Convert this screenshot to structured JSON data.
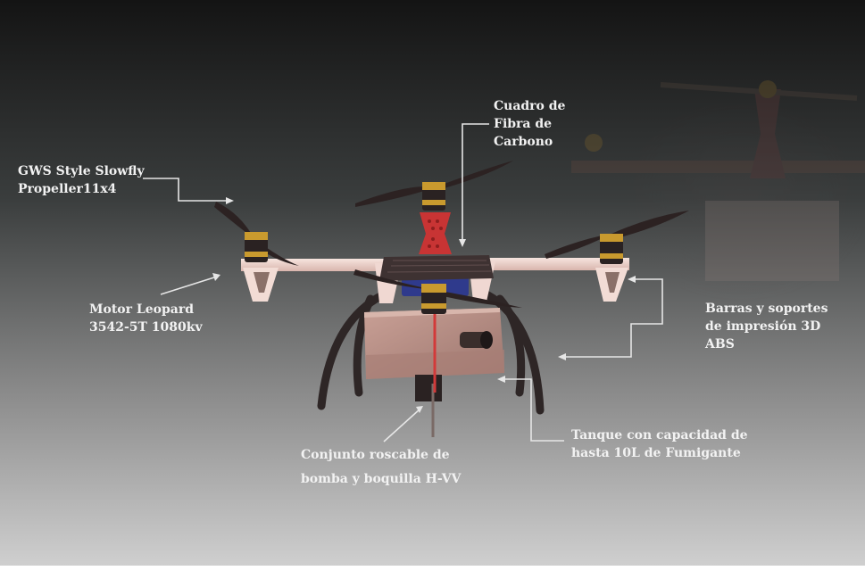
{
  "labels": {
    "propeller": "GWS Style Slowfly\nPropeller11x4",
    "frame": "Cuadro de\nFibra de\nCarbono",
    "motor": "Motor Leopard\n3542-5T 1080kv",
    "bars": "Barras y soportes\nde impresión 3D\nABS",
    "tank": "Tanque con capacidad de\nhasta 10L de Fumigante",
    "pump_line1": "Conjunto roscable de",
    "pump_line2": "bomba y boquilla  H-VV"
  },
  "colors": {
    "background_top": "#151515",
    "background_bottom": "#c9c9c9",
    "frame_white": "#f0d8d2",
    "carbon": "#4a3a3a",
    "accent_red": "#c83a3a",
    "motor_gold": "#c99a2e",
    "tank": "#b89086",
    "leader_line": "#e6e6e6"
  }
}
